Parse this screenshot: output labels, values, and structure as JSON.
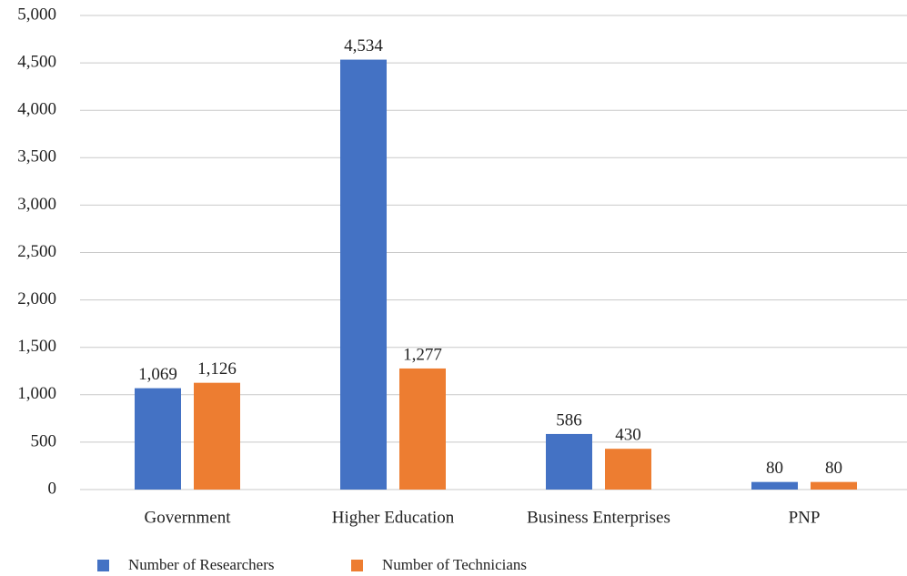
{
  "chart_data": {
    "type": "bar",
    "categories": [
      "Government",
      "Higher Education",
      "Business Enterprises",
      "PNP"
    ],
    "series": [
      {
        "name": "Number of Researchers",
        "color": "#4472c4",
        "values": [
          1069,
          4534,
          586,
          80
        ],
        "value_labels": [
          "1,069",
          "4,534",
          "586",
          "80"
        ]
      },
      {
        "name": "Number of Technicians",
        "color": "#ed7d31",
        "values": [
          1126,
          1277,
          430,
          80
        ],
        "value_labels": [
          "1,126",
          "1,277",
          "430",
          "80"
        ]
      }
    ],
    "ylim": [
      0,
      5000
    ],
    "yticks": [
      0,
      500,
      {
        "value": 1000,
        "label": "1,000"
      },
      {
        "value": 1500,
        "label": "1,500"
      },
      {
        "value": 2000,
        "label": "2,000"
      },
      {
        "value": 2500,
        "label": "2,500"
      },
      {
        "value": 3000,
        "label": "3,000"
      },
      {
        "value": 3500,
        "label": "3,500"
      },
      {
        "value": 4000,
        "label": "4,000"
      },
      {
        "value": 4500,
        "label": "4,500"
      },
      {
        "value": 5000,
        "label": "5,000"
      }
    ],
    "grid": true
  }
}
